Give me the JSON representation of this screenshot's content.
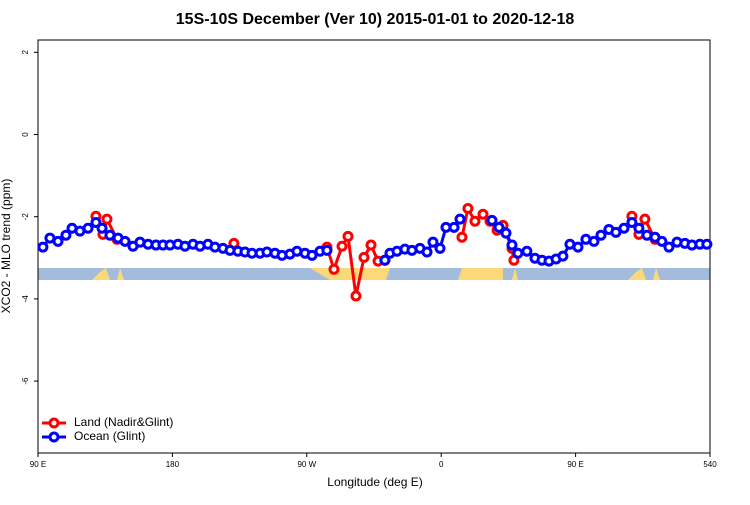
{
  "chart_data": {
    "type": "line",
    "title": "15S-10S December (Ver 10)   2015-01-01 to 2020-12-18",
    "x_label": "Longitude (deg E)",
    "y_label": "XCO2 - MLO trend (ppm)",
    "xlim": [
      90,
      540
    ],
    "ylim": [
      -7.75,
      2.3
    ],
    "xticks": [
      {
        "value": 90,
        "label": "90 E"
      },
      180,
      {
        "value": 270,
        "label": "90 W"
      },
      {
        "value": 360,
        "label": "0"
      },
      {
        "value": 450,
        "label": "90 E"
      },
      540
    ],
    "yticks": [
      2,
      0,
      -2,
      -4,
      -6
    ],
    "legend": "bottom-left",
    "series": [
      {
        "name": "Land (Nadir&Glint)",
        "color": "#ff0000",
        "x": [
          128.8,
          133.5,
          136.2,
          142.9,
          180,
          221.2,
          250,
          283.5,
          288.2,
          293.6,
          297.6,
          302.9,
          308.3,
          313.0,
          317.7,
          322.3,
          340,
          373.9,
          377.9,
          382.6,
          388.0,
          392.7,
          397.4,
          401.4,
          407.4,
          408.7,
          450,
          487.7,
          492.4,
          496.4,
          503.2
        ],
        "values": [
          -1.99,
          -2.43,
          -2.06,
          -2.55,
          null,
          -2.65,
          null,
          -2.74,
          -3.28,
          -2.72,
          -2.48,
          -3.93,
          -2.99,
          -2.69,
          -3.08,
          -3.06,
          null,
          -2.5,
          -1.8,
          -2.11,
          -1.94,
          -2.11,
          -2.33,
          -2.21,
          -2.77,
          -3.06,
          null,
          -1.99,
          -2.43,
          -2.06,
          -2.55
        ]
      },
      {
        "name": "Ocean (Glint)",
        "color": "#0000ff",
        "x": [
          93.3,
          98.0,
          103.4,
          108.7,
          112.8,
          118.1,
          123.5,
          128.8,
          132.9,
          138.2,
          143.6,
          148.3,
          153.6,
          158.3,
          163.7,
          169.0,
          173.7,
          178.4,
          183.7,
          188.4,
          193.8,
          198.5,
          203.8,
          208.5,
          213.9,
          218.6,
          223.9,
          228.6,
          233.3,
          238.7,
          243.3,
          248.7,
          253.4,
          258.7,
          263.4,
          268.8,
          273.5,
          278.8,
          283.5,
          305,
          322.3,
          325.7,
          330.4,
          335.7,
          340.4,
          345.8,
          350.5,
          354.5,
          359.2,
          363.2,
          368.6,
          372.6,
          383,
          394.0,
          398.7,
          403.4,
          407.4,
          411.4,
          417.4,
          422.8,
          427.5,
          432.2,
          436.9,
          441.5,
          446.2,
          451.6,
          456.9,
          462.3,
          467.0,
          472.3,
          477.0,
          482.4,
          487.7,
          492.4,
          497.8,
          503.2,
          507.8,
          512.5,
          517.9,
          523.2,
          527.9,
          533.2,
          537.9
        ],
        "values": [
          -2.74,
          -2.52,
          -2.6,
          -2.45,
          -2.28,
          -2.35,
          -2.28,
          -2.14,
          -2.28,
          -2.45,
          -2.52,
          -2.6,
          -2.72,
          -2.62,
          -2.67,
          -2.69,
          -2.69,
          -2.69,
          -2.67,
          -2.72,
          -2.67,
          -2.72,
          -2.67,
          -2.74,
          -2.77,
          -2.82,
          -2.84,
          -2.86,
          -2.89,
          -2.89,
          -2.86,
          -2.89,
          -2.94,
          -2.91,
          -2.84,
          -2.89,
          -2.94,
          -2.84,
          -2.82,
          null,
          -3.06,
          -2.89,
          -2.84,
          -2.79,
          -2.82,
          -2.77,
          -2.86,
          -2.62,
          -2.77,
          -2.26,
          -2.26,
          -2.06,
          null,
          -2.09,
          -2.26,
          -2.4,
          -2.69,
          -2.89,
          -2.84,
          -3.01,
          -3.06,
          -3.08,
          -3.03,
          -2.96,
          -2.67,
          -2.74,
          -2.55,
          -2.6,
          -2.45,
          -2.31,
          -2.38,
          -2.28,
          -2.14,
          -2.28,
          -2.45,
          -2.5,
          -2.6,
          -2.74,
          -2.62,
          -2.65,
          -2.69,
          -2.67,
          -2.67
        ]
      }
    ]
  }
}
